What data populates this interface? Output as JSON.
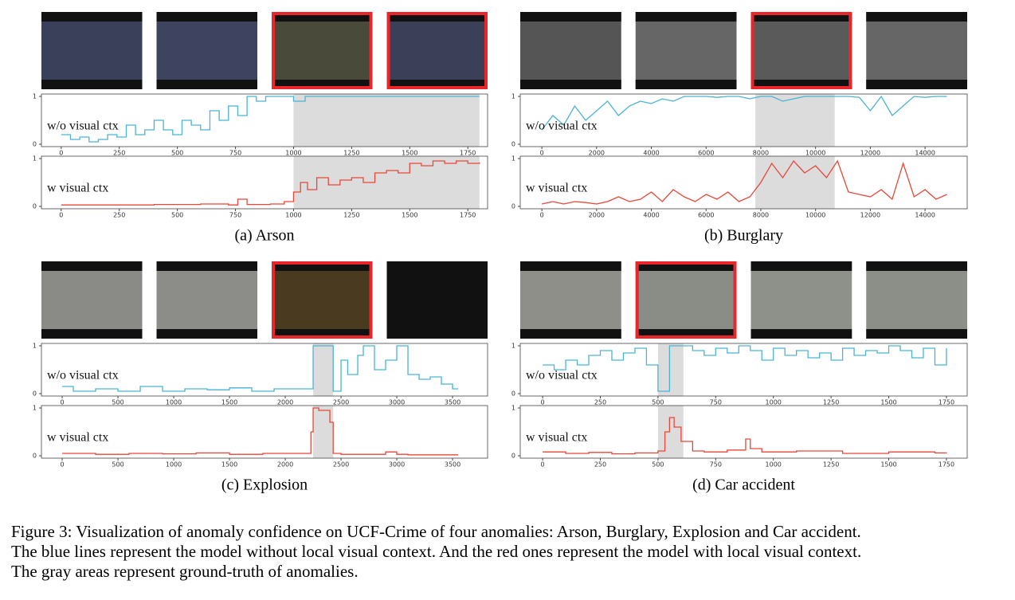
{
  "figure": {
    "panels": [
      {
        "caption": "(a) Arson",
        "charts": [
          {
            "type": "line",
            "label": "w/o visual ctx",
            "drawstyle": "steps-post",
            "xlim": [
              -85,
              1835
            ],
            "ylim": [
              -0.05,
              1.05
            ],
            "xticks": [
              0,
              250,
              500,
              750,
              1000,
              1250,
              1500,
              1750
            ],
            "yticks": [
              0,
              1
            ],
            "anomaly_span": [
              1000,
              1800
            ],
            "series": [
              {
                "color": "#4bb3d3",
                "x": [
                  0,
                  40,
                  80,
                  120,
                  160,
                  200,
                  240,
                  280,
                  320,
                  360,
                  400,
                  440,
                  480,
                  520,
                  560,
                  600,
                  640,
                  680,
                  720,
                  760,
                  800,
                  840,
                  880,
                  920,
                  960,
                  1000,
                  1050,
                  1800
                ],
                "values": [
                  0.2,
                  0.1,
                  0.15,
                  0.05,
                  0.1,
                  0.2,
                  0.15,
                  0.4,
                  0.2,
                  0.3,
                  0.5,
                  0.3,
                  0.2,
                  0.5,
                  0.4,
                  0.3,
                  0.7,
                  0.5,
                  0.8,
                  0.6,
                  1,
                  0.9,
                  1,
                  1,
                  1,
                  0.9,
                  1,
                  1
                ]
              }
            ]
          },
          {
            "type": "line",
            "label": "w visual ctx",
            "drawstyle": "steps-post",
            "xlim": [
              -85,
              1835
            ],
            "ylim": [
              -0.05,
              1.05
            ],
            "xticks": [
              0,
              250,
              500,
              750,
              1000,
              1250,
              1500,
              1750
            ],
            "yticks": [
              0,
              1
            ],
            "anomaly_span": [
              1000,
              1800
            ],
            "series": [
              {
                "color": "#e8473a",
                "x": [
                  0,
                  200,
                  400,
                  600,
                  720,
                  760,
                  800,
                  900,
                  960,
                  1000,
                  1030,
                  1060,
                  1100,
                  1150,
                  1200,
                  1250,
                  1300,
                  1350,
                  1400,
                  1450,
                  1500,
                  1550,
                  1600,
                  1650,
                  1700,
                  1750,
                  1800
                ],
                "values": [
                  0.03,
                  0.03,
                  0.04,
                  0.05,
                  0.03,
                  0.15,
                  0.04,
                  0.05,
                  0.1,
                  0.3,
                  0.5,
                  0.35,
                  0.6,
                  0.45,
                  0.55,
                  0.6,
                  0.5,
                  0.7,
                  0.75,
                  0.7,
                  0.9,
                  0.85,
                  0.95,
                  0.9,
                  0.95,
                  0.9,
                  0.92
                ]
              }
            ]
          }
        ]
      },
      {
        "caption": "(b) Burglary",
        "charts": [
          {
            "type": "line",
            "label": "w/o visual ctx",
            "drawstyle": "default",
            "xlim": [
              -790,
              15540
            ],
            "ylim": [
              -0.05,
              1.05
            ],
            "xticks": [
              0,
              2000,
              4000,
              6000,
              8000,
              10000,
              12000,
              14000
            ],
            "yticks": [
              0,
              1
            ],
            "anomaly_span": [
              7800,
              10700
            ],
            "series": [
              {
                "color": "#4bb3d3",
                "x": [
                  0,
                  400,
                  800,
                  1200,
                  1600,
                  2000,
                  2400,
                  2800,
                  3200,
                  3600,
                  4000,
                  4400,
                  4800,
                  5200,
                  5600,
                  6000,
                  6400,
                  6800,
                  7200,
                  7600,
                  8000,
                  8400,
                  8800,
                  9200,
                  9600,
                  10000,
                  10400,
                  10800,
                  11200,
                  11600,
                  12000,
                  12400,
                  12800,
                  13200,
                  13600,
                  14000,
                  14400,
                  14800
                ],
                "values": [
                  0.3,
                  0.6,
                  0.4,
                  0.8,
                  0.5,
                  0.7,
                  0.9,
                  0.6,
                  0.8,
                  0.9,
                  0.85,
                  0.95,
                  0.9,
                  1,
                  1,
                  1,
                  0.98,
                  1,
                  1,
                  0.95,
                  1,
                  1,
                  0.9,
                  0.95,
                  1,
                  1,
                  1,
                  1,
                  1,
                  0.98,
                  0.7,
                  1,
                  0.6,
                  0.8,
                  1,
                  0.98,
                  1,
                  1
                ]
              }
            ]
          },
          {
            "type": "line",
            "label": "w visual ctx",
            "drawstyle": "default",
            "xlim": [
              -790,
              15540
            ],
            "ylim": [
              -0.05,
              1.05
            ],
            "xticks": [
              0,
              2000,
              4000,
              6000,
              8000,
              10000,
              12000,
              14000
            ],
            "yticks": [
              0,
              1
            ],
            "anomaly_span": [
              7800,
              10700
            ],
            "series": [
              {
                "color": "#e8473a",
                "x": [
                  0,
                  400,
                  800,
                  1200,
                  1600,
                  2000,
                  2400,
                  2800,
                  3200,
                  3600,
                  4000,
                  4400,
                  4800,
                  5200,
                  5600,
                  6000,
                  6400,
                  6800,
                  7200,
                  7600,
                  8000,
                  8400,
                  8800,
                  9200,
                  9600,
                  10000,
                  10400,
                  10800,
                  11200,
                  11600,
                  12000,
                  12400,
                  12800,
                  13200,
                  13600,
                  14000,
                  14400,
                  14800
                ],
                "values": [
                  0.05,
                  0.1,
                  0.05,
                  0.1,
                  0.08,
                  0.05,
                  0.1,
                  0.2,
                  0.1,
                  0.15,
                  0.3,
                  0.1,
                  0.35,
                  0.2,
                  0.1,
                  0.25,
                  0.15,
                  0.3,
                  0.1,
                  0.2,
                  0.5,
                  0.9,
                  0.6,
                  0.95,
                  0.7,
                  0.85,
                  0.6,
                  0.95,
                  0.3,
                  0.25,
                  0.2,
                  0.35,
                  0.15,
                  0.9,
                  0.2,
                  0.35,
                  0.15,
                  0.25
                ]
              }
            ]
          }
        ]
      },
      {
        "caption": "(c) Explosion",
        "charts": [
          {
            "type": "line",
            "label": "w/o visual ctx",
            "drawstyle": "steps-post",
            "xlim": [
              -186,
              3814
            ],
            "ylim": [
              -0.05,
              1.05
            ],
            "xticks": [
              0,
              500,
              1000,
              1500,
              2000,
              2500,
              3000,
              3500
            ],
            "yticks": [
              0,
              1
            ],
            "anomaly_span": [
              2250,
              2430
            ],
            "series": [
              {
                "color": "#4bb3d3",
                "x": [
                  0,
                  100,
                  300,
                  500,
                  700,
                  900,
                  1100,
                  1300,
                  1500,
                  1700,
                  1900,
                  2100,
                  2250,
                  2430,
                  2500,
                  2560,
                  2650,
                  2700,
                  2800,
                  2900,
                  3000,
                  3100,
                  3200,
                  3300,
                  3400,
                  3500,
                  3550
                ],
                "values": [
                  0.15,
                  0.05,
                  0.1,
                  0.05,
                  0.15,
                  0.05,
                  0.1,
                  0.08,
                  0.12,
                  0.05,
                  0.1,
                  0.1,
                  1,
                  0.05,
                  0.7,
                  0.4,
                  0.8,
                  1,
                  0.5,
                  0.7,
                  1,
                  0.4,
                  0.3,
                  0.35,
                  0.2,
                  0.1,
                  0.1
                ]
              }
            ]
          },
          {
            "type": "line",
            "label": "w visual ctx",
            "drawstyle": "steps-post",
            "xlim": [
              -186,
              3814
            ],
            "ylim": [
              -0.05,
              1.05
            ],
            "xticks": [
              0,
              500,
              1000,
              1500,
              2000,
              2500,
              3000,
              3500
            ],
            "yticks": [
              0,
              1
            ],
            "anomaly_span": [
              2250,
              2430
            ],
            "series": [
              {
                "color": "#e8473a",
                "x": [
                  0,
                  300,
                  600,
                  900,
                  1200,
                  1500,
                  1800,
                  2100,
                  2230,
                  2250,
                  2300,
                  2400,
                  2430,
                  2500,
                  2900,
                  3000,
                  3100,
                  3550
                ],
                "values": [
                  0.05,
                  0.03,
                  0.05,
                  0.04,
                  0.06,
                  0.03,
                  0.05,
                  0.05,
                  0.5,
                  1,
                  0.95,
                  0.7,
                  0.05,
                  0.03,
                  0.08,
                  0.03,
                  0.02,
                  0.02
                ]
              }
            ]
          }
        ]
      },
      {
        "caption": "(d) Car accident",
        "charts": [
          {
            "type": "line",
            "label": "w/o visual ctx",
            "drawstyle": "steps-post",
            "xlim": [
              -97,
              1840
            ],
            "ylim": [
              -0.05,
              1.05
            ],
            "xticks": [
              0,
              250,
              500,
              750,
              1000,
              1250,
              1500,
              1750
            ],
            "yticks": [
              0,
              1
            ],
            "anomaly_span": [
              500,
              610
            ],
            "series": [
              {
                "color": "#4bb3d3",
                "x": [
                  0,
                  50,
                  100,
                  150,
                  200,
                  250,
                  300,
                  350,
                  400,
                  450,
                  500,
                  550,
                  600,
                  650,
                  700,
                  750,
                  800,
                  850,
                  900,
                  950,
                  1000,
                  1050,
                  1100,
                  1150,
                  1200,
                  1250,
                  1300,
                  1350,
                  1400,
                  1450,
                  1500,
                  1550,
                  1600,
                  1650,
                  1700,
                  1750
                ],
                "values": [
                  0.6,
                  0.5,
                  0.7,
                  0.6,
                  0.8,
                  0.9,
                  0.7,
                  0.85,
                  0.95,
                  0.6,
                  0.05,
                  1,
                  1,
                  0.9,
                  0.8,
                  0.95,
                  0.85,
                  1,
                  0.9,
                  0.7,
                  0.95,
                  0.8,
                  0.9,
                  0.75,
                  0.85,
                  0.7,
                  0.95,
                  0.8,
                  0.9,
                  0.85,
                  1,
                  0.9,
                  0.75,
                  0.95,
                  0.6,
                  0.95
                ]
              }
            ]
          },
          {
            "type": "line",
            "label": "w visual ctx",
            "drawstyle": "steps-post",
            "xlim": [
              -97,
              1840
            ],
            "ylim": [
              -0.05,
              1.05
            ],
            "xticks": [
              0,
              250,
              500,
              750,
              1000,
              1250,
              1500,
              1750
            ],
            "yticks": [
              0,
              1
            ],
            "anomaly_span": [
              500,
              610
            ],
            "series": [
              {
                "color": "#e8473a",
                "x": [
                  0,
                  100,
                  200,
                  300,
                  400,
                  500,
                  530,
                  550,
                  570,
                  600,
                  650,
                  700,
                  800,
                  880,
                  900,
                  950,
                  1100,
                  1300,
                  1500,
                  1700,
                  1750
                ],
                "values": [
                  0.08,
                  0.05,
                  0.07,
                  0.04,
                  0.06,
                  0.1,
                  0.5,
                  0.8,
                  0.6,
                  0.3,
                  0.1,
                  0.08,
                  0.12,
                  0.35,
                  0.15,
                  0.08,
                  0.1,
                  0.05,
                  0.08,
                  0.06,
                  0.07
                ]
              }
            ]
          }
        ]
      }
    ],
    "caption": [
      "Figure 3: Visualization of anomaly confidence on UCF-Crime of four anomalies: Arson, Burglary, Explosion and Car accident.",
      "The blue lines represent the model without local visual context. And the red ones represent the model with local visual context.",
      "The gray areas represent ground-truth of anomalies."
    ]
  }
}
